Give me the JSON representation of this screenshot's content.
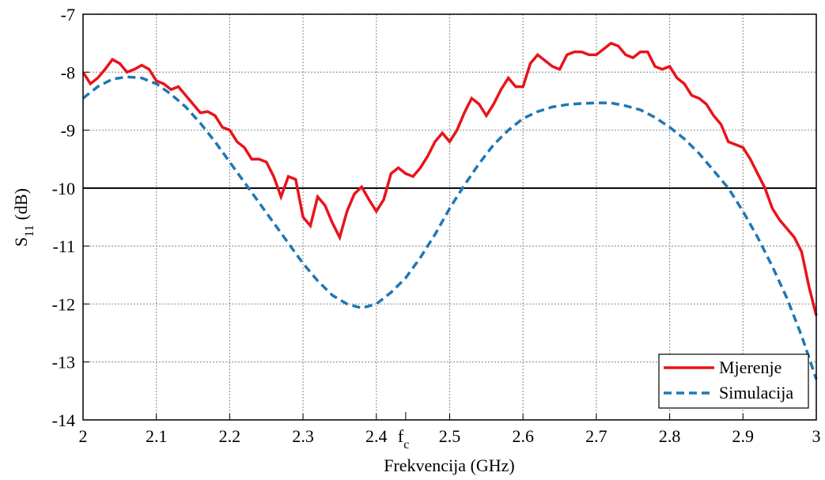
{
  "chart_data": {
    "type": "line",
    "xlabel": "Frekvencija (GHz)",
    "ylabel": {
      "main": "S",
      "sub": "11",
      "suffix": "(dB)"
    },
    "xlim": [
      2,
      3
    ],
    "ylim": [
      -14,
      -7
    ],
    "xticks": [
      2,
      2.1,
      2.2,
      2.3,
      2.4,
      2.5,
      2.6,
      2.7,
      2.8,
      2.9,
      3
    ],
    "yticks": [
      -14,
      -13,
      -12,
      -11,
      -10,
      -9,
      -8,
      -7
    ],
    "grid": true,
    "reference_line": -10,
    "annotation": {
      "x": 2.44,
      "text": "f",
      "sub": "c"
    },
    "legend": "lower right",
    "series": [
      {
        "name": "Mjerenje",
        "color": "#e8141b",
        "dash": "solid",
        "x": [
          2,
          2.01,
          2.02,
          2.03,
          2.04,
          2.05,
          2.06,
          2.07,
          2.08,
          2.09,
          2.1,
          2.11,
          2.12,
          2.13,
          2.14,
          2.15,
          2.16,
          2.17,
          2.18,
          2.19,
          2.2,
          2.21,
          2.22,
          2.23,
          2.24,
          2.25,
          2.26,
          2.27,
          2.28,
          2.29,
          2.3,
          2.31,
          2.32,
          2.33,
          2.34,
          2.35,
          2.36,
          2.37,
          2.38,
          2.39,
          2.4,
          2.41,
          2.42,
          2.43,
          2.44,
          2.45,
          2.46,
          2.47,
          2.48,
          2.49,
          2.5,
          2.51,
          2.52,
          2.53,
          2.54,
          2.55,
          2.56,
          2.57,
          2.58,
          2.59,
          2.6,
          2.61,
          2.62,
          2.63,
          2.64,
          2.65,
          2.66,
          2.67,
          2.68,
          2.69,
          2.7,
          2.71,
          2.72,
          2.73,
          2.74,
          2.75,
          2.76,
          2.77,
          2.78,
          2.79,
          2.8,
          2.81,
          2.82,
          2.83,
          2.84,
          2.85,
          2.86,
          2.87,
          2.88,
          2.89,
          2.9,
          2.91,
          2.92,
          2.93,
          2.94,
          2.95,
          2.96,
          2.97,
          2.98,
          2.99,
          3
        ],
        "values": [
          -8.0,
          -8.2,
          -8.1,
          -7.95,
          -7.78,
          -7.85,
          -8.0,
          -7.95,
          -7.88,
          -7.95,
          -8.15,
          -8.2,
          -8.3,
          -8.25,
          -8.4,
          -8.55,
          -8.7,
          -8.68,
          -8.75,
          -8.95,
          -9.0,
          -9.2,
          -9.3,
          -9.5,
          -9.5,
          -9.55,
          -9.8,
          -10.15,
          -9.8,
          -9.85,
          -10.5,
          -10.65,
          -10.15,
          -10.3,
          -10.6,
          -10.85,
          -10.4,
          -10.1,
          -9.98,
          -10.2,
          -10.4,
          -10.2,
          -9.75,
          -9.65,
          -9.75,
          -9.8,
          -9.65,
          -9.45,
          -9.2,
          -9.05,
          -9.2,
          -9.0,
          -8.7,
          -8.45,
          -8.55,
          -8.75,
          -8.55,
          -8.3,
          -8.1,
          -8.25,
          -8.25,
          -7.85,
          -7.7,
          -7.8,
          -7.9,
          -7.95,
          -7.7,
          -7.65,
          -7.65,
          -7.7,
          -7.7,
          -7.6,
          -7.5,
          -7.55,
          -7.7,
          -7.75,
          -7.65,
          -7.65,
          -7.9,
          -7.95,
          -7.9,
          -8.1,
          -8.2,
          -8.4,
          -8.45,
          -8.55,
          -8.75,
          -8.9,
          -9.2,
          -9.25,
          -9.3,
          -9.5,
          -9.75,
          -10.0,
          -10.35,
          -10.55,
          -10.7,
          -10.85,
          -11.1,
          -11.7,
          -12.2
        ]
      },
      {
        "name": "Simulacija",
        "color": "#1f77b4",
        "dash": "dashed",
        "x": [
          2,
          2.02,
          2.04,
          2.06,
          2.08,
          2.1,
          2.12,
          2.14,
          2.16,
          2.18,
          2.2,
          2.22,
          2.24,
          2.26,
          2.28,
          2.3,
          2.32,
          2.34,
          2.36,
          2.38,
          2.4,
          2.42,
          2.44,
          2.46,
          2.48,
          2.5,
          2.52,
          2.54,
          2.56,
          2.58,
          2.6,
          2.62,
          2.64,
          2.66,
          2.68,
          2.7,
          2.72,
          2.74,
          2.76,
          2.78,
          2.8,
          2.82,
          2.84,
          2.86,
          2.88,
          2.9,
          2.92,
          2.94,
          2.96,
          2.98,
          3
        ],
        "values": [
          -8.45,
          -8.25,
          -8.12,
          -8.08,
          -8.1,
          -8.2,
          -8.38,
          -8.6,
          -8.88,
          -9.2,
          -9.55,
          -9.9,
          -10.25,
          -10.6,
          -10.95,
          -11.3,
          -11.6,
          -11.85,
          -12.0,
          -12.07,
          -12.0,
          -11.8,
          -11.55,
          -11.2,
          -10.8,
          -10.35,
          -9.95,
          -9.58,
          -9.25,
          -9.0,
          -8.8,
          -8.68,
          -8.6,
          -8.56,
          -8.54,
          -8.53,
          -8.53,
          -8.58,
          -8.65,
          -8.78,
          -8.95,
          -9.15,
          -9.4,
          -9.7,
          -10.0,
          -10.4,
          -10.85,
          -11.35,
          -11.9,
          -12.55,
          -13.3
        ]
      }
    ]
  }
}
